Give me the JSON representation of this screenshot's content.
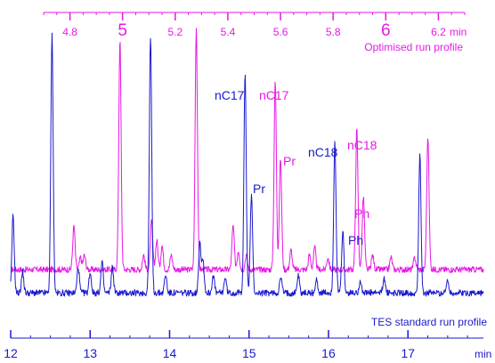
{
  "chart_data": [
    {
      "type": "line",
      "title": "",
      "xlabel": "min",
      "ylabel": "",
      "x_axis_position": "top",
      "xlim": [
        4.7,
        6.3
      ],
      "x_ticks": [
        4.8,
        5,
        5.2,
        5.4,
        5.6,
        5.8,
        6,
        6.2
      ],
      "x_tick_labels": [
        "4.8",
        "5",
        "5.2",
        "5.4",
        "5.6",
        "5.8",
        "6",
        "6.2"
      ],
      "minor_tick_step": 0.05,
      "grid": false,
      "legend": "none",
      "series": [
        {
          "name": "Optimised run profile",
          "color": "#e619e6",
          "baseline": 0.07,
          "peaks": [
            {
              "x": 4.815,
              "h": 0.18
            },
            {
              "x": 4.84,
              "h": 0.05
            },
            {
              "x": 4.855,
              "h": 0.06
            },
            {
              "x": 4.99,
              "h": 0.95
            },
            {
              "x": 5.08,
              "h": 0.06
            },
            {
              "x": 5.11,
              "h": 0.2
            },
            {
              "x": 5.13,
              "h": 0.12
            },
            {
              "x": 5.15,
              "h": 0.1
            },
            {
              "x": 5.185,
              "h": 0.06
            },
            {
              "x": 5.28,
              "h": 1.0
            },
            {
              "x": 5.42,
              "h": 0.18
            },
            {
              "x": 5.44,
              "h": 0.08
            },
            {
              "x": 5.47,
              "h": 0.06
            },
            {
              "x": 5.58,
              "h": 0.78,
              "label": "nC17"
            },
            {
              "x": 5.6,
              "h": 0.46,
              "label": "Pr"
            },
            {
              "x": 5.64,
              "h": 0.08
            },
            {
              "x": 5.71,
              "h": 0.06
            },
            {
              "x": 5.73,
              "h": 0.09
            },
            {
              "x": 5.78,
              "h": 0.05
            },
            {
              "x": 5.89,
              "h": 0.58,
              "label": "nC18"
            },
            {
              "x": 5.915,
              "h": 0.3,
              "label": "Ph"
            },
            {
              "x": 5.95,
              "h": 0.06
            },
            {
              "x": 6.02,
              "h": 0.05
            },
            {
              "x": 6.11,
              "h": 0.05
            },
            {
              "x": 6.16,
              "h": 0.55
            }
          ]
        }
      ],
      "annotations": [
        {
          "text": "nC17",
          "color": "#e619e6"
        },
        {
          "text": "Pr",
          "color": "#e619e6"
        },
        {
          "text": "nC18",
          "color": "#e619e6"
        },
        {
          "text": "Ph",
          "color": "#e619e6"
        },
        {
          "text": "Optimised run profile",
          "color": "#e619e6"
        }
      ]
    },
    {
      "type": "line",
      "title": "",
      "xlabel": "min",
      "ylabel": "",
      "x_axis_position": "bottom",
      "xlim": [
        12.0,
        17.95
      ],
      "x_ticks": [
        12,
        13,
        14,
        15,
        16,
        17
      ],
      "x_tick_labels": [
        "12",
        "13",
        "14",
        "15",
        "16",
        "17"
      ],
      "minor_tick_step": 0.25,
      "grid": false,
      "legend": "none",
      "series": [
        {
          "name": "TES standard run profile",
          "color": "#1a1acc",
          "baseline": 0.03,
          "peaks": [
            {
              "x": 12.03,
              "h": 0.3
            },
            {
              "x": 12.15,
              "h": 0.08
            },
            {
              "x": 12.52,
              "h": 1.0
            },
            {
              "x": 12.85,
              "h": 0.1
            },
            {
              "x": 13.0,
              "h": 0.08
            },
            {
              "x": 13.15,
              "h": 0.12
            },
            {
              "x": 13.28,
              "h": 0.1
            },
            {
              "x": 13.76,
              "h": 1.0
            },
            {
              "x": 13.95,
              "h": 0.07
            },
            {
              "x": 14.38,
              "h": 0.2
            },
            {
              "x": 14.42,
              "h": 0.13
            },
            {
              "x": 14.55,
              "h": 0.07
            },
            {
              "x": 14.7,
              "h": 0.06
            },
            {
              "x": 14.95,
              "h": 0.85,
              "label": "nC17"
            },
            {
              "x": 15.03,
              "h": 0.38,
              "label": "Pr"
            },
            {
              "x": 15.4,
              "h": 0.06
            },
            {
              "x": 15.62,
              "h": 0.07
            },
            {
              "x": 15.85,
              "h": 0.05
            },
            {
              "x": 16.08,
              "h": 0.59,
              "label": "nC18"
            },
            {
              "x": 16.18,
              "h": 0.24,
              "label": "Ph"
            },
            {
              "x": 16.4,
              "h": 0.05
            },
            {
              "x": 16.7,
              "h": 0.06
            },
            {
              "x": 17.15,
              "h": 0.53
            },
            {
              "x": 17.5,
              "h": 0.05
            }
          ]
        }
      ],
      "annotations": [
        {
          "text": "nC17",
          "color": "#1a1acc"
        },
        {
          "text": "Pr",
          "color": "#1a1acc"
        },
        {
          "text": "nC18",
          "color": "#1a1acc"
        },
        {
          "text": "Ph",
          "color": "#1a1acc"
        },
        {
          "text": "TES standard run profile",
          "color": "#1a1acc"
        }
      ]
    }
  ]
}
